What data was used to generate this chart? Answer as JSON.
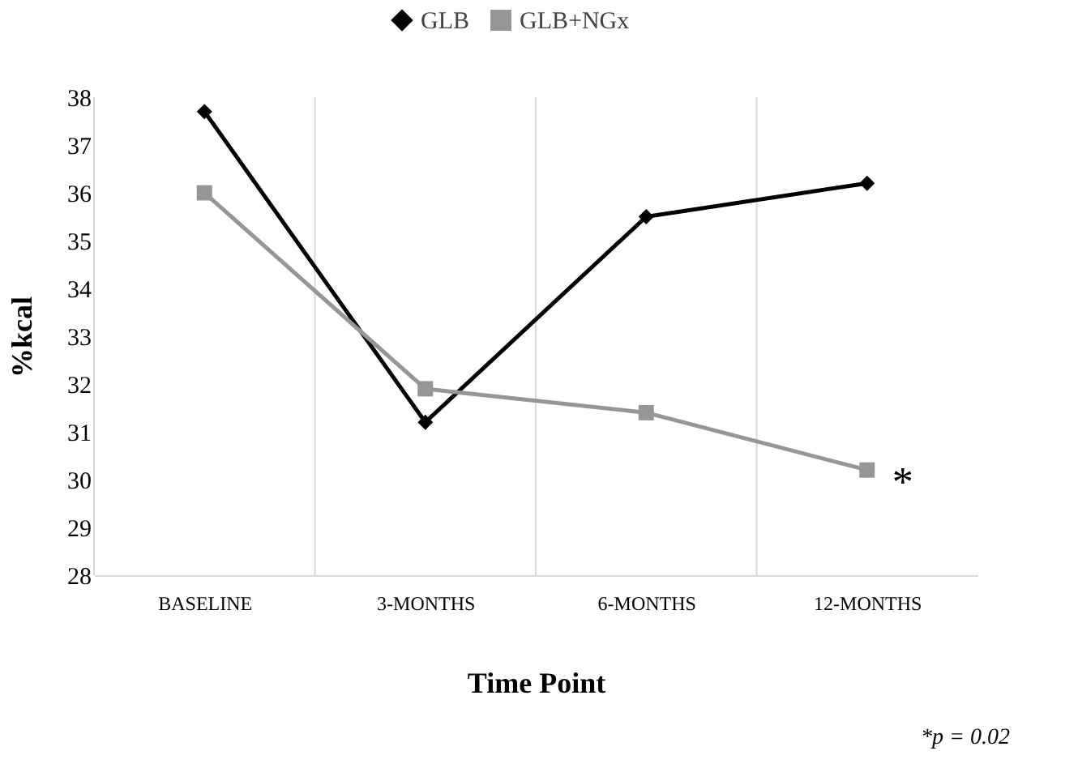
{
  "chart_data": {
    "type": "line",
    "xlabel": "Time Point",
    "ylabel": "%kcal",
    "categories": [
      "BASELINE",
      "3-MONTHS",
      "6-MONTHS",
      "12-MONTHS"
    ],
    "series": [
      {
        "name": "GLB",
        "color": "#000000",
        "marker": "diamond",
        "values": [
          37.7,
          31.2,
          35.5,
          36.2
        ]
      },
      {
        "name": "GLB+NGx",
        "color": "#969696",
        "marker": "square",
        "values": [
          36.0,
          31.9,
          31.4,
          30.2
        ]
      }
    ],
    "ylim": [
      28,
      38
    ],
    "yticks": [
      28,
      29,
      30,
      31,
      32,
      33,
      34,
      35,
      36,
      37,
      38
    ],
    "grid": "x",
    "legend": "top",
    "annotations": [
      {
        "text": "*",
        "x": "12-MONTHS",
        "y": 30.2
      },
      "*p = 0.02"
    ]
  }
}
